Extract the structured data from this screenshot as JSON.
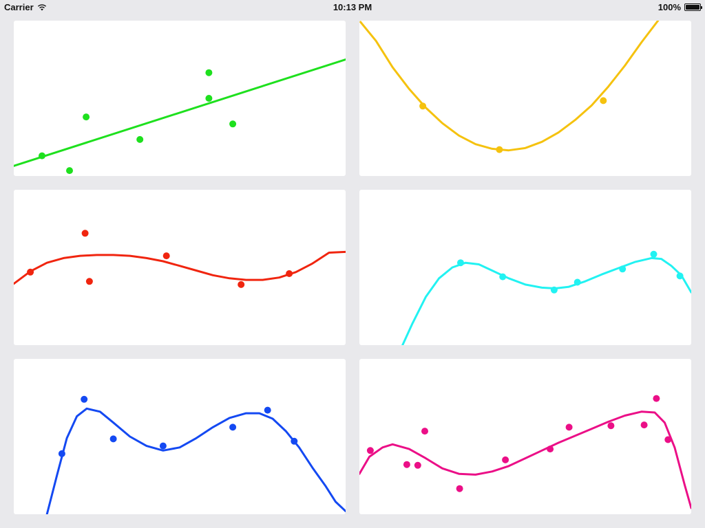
{
  "status_bar": {
    "carrier": "Carrier",
    "time": "10:13 PM",
    "battery": "100%",
    "battery_level": 1.0
  },
  "chart_data": [
    {
      "type": "scatter",
      "color": "#1ee01e",
      "fit": "linear",
      "xlim": [
        0,
        10
      ],
      "ylim": [
        0,
        10
      ],
      "points": [
        [
          0.85,
          1.3
        ],
        [
          1.68,
          0.35
        ],
        [
          2.18,
          3.8
        ],
        [
          3.8,
          2.35
        ],
        [
          5.88,
          5.0
        ],
        [
          5.88,
          6.65
        ],
        [
          6.6,
          3.35
        ]
      ],
      "curve": [
        [
          0,
          0.65
        ],
        [
          10,
          7.5
        ]
      ]
    },
    {
      "type": "scatter",
      "color": "#f5c20f",
      "fit": "quadratic",
      "xlim": [
        0,
        10
      ],
      "ylim": [
        0,
        10
      ],
      "points": [
        [
          1.91,
          4.5
        ],
        [
          4.22,
          1.7
        ],
        [
          7.35,
          4.85
        ]
      ],
      "curve": [
        [
          0,
          10.0
        ],
        [
          0.5,
          8.7
        ],
        [
          1.0,
          7.0
        ],
        [
          1.5,
          5.6
        ],
        [
          2.0,
          4.4
        ],
        [
          2.5,
          3.4
        ],
        [
          3.0,
          2.6
        ],
        [
          3.5,
          2.05
        ],
        [
          4.0,
          1.75
        ],
        [
          4.5,
          1.65
        ],
        [
          5.0,
          1.8
        ],
        [
          5.5,
          2.2
        ],
        [
          6.0,
          2.8
        ],
        [
          6.5,
          3.6
        ],
        [
          7.0,
          4.55
        ],
        [
          7.5,
          5.75
        ],
        [
          8.0,
          7.1
        ],
        [
          8.5,
          8.6
        ],
        [
          9.0,
          10.0
        ]
      ]
    },
    {
      "type": "scatter",
      "color": "#f0250f",
      "fit": "cubic",
      "xlim": [
        0,
        10
      ],
      "ylim": [
        0,
        10
      ],
      "points": [
        [
          0.5,
          4.7
        ],
        [
          2.15,
          7.2
        ],
        [
          2.28,
          4.1
        ],
        [
          4.6,
          5.75
        ],
        [
          6.85,
          3.9
        ],
        [
          8.3,
          4.6
        ]
      ],
      "curve": [
        [
          0,
          3.95
        ],
        [
          0.5,
          4.75
        ],
        [
          1.0,
          5.3
        ],
        [
          1.5,
          5.6
        ],
        [
          2.0,
          5.75
        ],
        [
          2.5,
          5.8
        ],
        [
          3.0,
          5.8
        ],
        [
          3.5,
          5.75
        ],
        [
          4.0,
          5.6
        ],
        [
          4.5,
          5.4
        ],
        [
          5.0,
          5.1
        ],
        [
          5.5,
          4.8
        ],
        [
          6.0,
          4.5
        ],
        [
          6.5,
          4.3
        ],
        [
          7.0,
          4.2
        ],
        [
          7.5,
          4.2
        ],
        [
          8.0,
          4.35
        ],
        [
          8.5,
          4.7
        ],
        [
          9.0,
          5.25
        ],
        [
          9.5,
          5.95
        ],
        [
          10,
          6.0
        ]
      ]
    },
    {
      "type": "scatter",
      "color": "#22f2f2",
      "fit": "polynomial",
      "xlim": [
        0,
        10
      ],
      "ylim": [
        0,
        10
      ],
      "points": [
        [
          3.05,
          5.3
        ],
        [
          4.32,
          4.4
        ],
        [
          5.87,
          3.55
        ],
        [
          6.57,
          4.05
        ],
        [
          7.93,
          4.9
        ],
        [
          8.87,
          5.85
        ],
        [
          9.66,
          4.45
        ]
      ],
      "curve": [
        [
          1.3,
          0.0
        ],
        [
          1.6,
          1.4
        ],
        [
          2.0,
          3.1
        ],
        [
          2.4,
          4.3
        ],
        [
          2.8,
          5.0
        ],
        [
          3.2,
          5.3
        ],
        [
          3.6,
          5.2
        ],
        [
          4.0,
          4.8
        ],
        [
          4.5,
          4.3
        ],
        [
          5.0,
          3.9
        ],
        [
          5.5,
          3.7
        ],
        [
          5.9,
          3.65
        ],
        [
          6.3,
          3.75
        ],
        [
          6.8,
          4.1
        ],
        [
          7.3,
          4.55
        ],
        [
          7.8,
          4.95
        ],
        [
          8.3,
          5.35
        ],
        [
          8.8,
          5.6
        ],
        [
          9.1,
          5.55
        ],
        [
          9.4,
          5.1
        ],
        [
          9.7,
          4.5
        ],
        [
          10,
          3.4
        ]
      ]
    },
    {
      "type": "scatter",
      "color": "#1449f2",
      "fit": "polynomial",
      "xlim": [
        0,
        10
      ],
      "ylim": [
        0,
        10
      ],
      "points": [
        [
          1.45,
          3.9
        ],
        [
          2.12,
          7.4
        ],
        [
          3.0,
          4.85
        ],
        [
          4.5,
          4.4
        ],
        [
          6.6,
          5.6
        ],
        [
          7.65,
          6.7
        ],
        [
          8.45,
          4.7
        ]
      ],
      "curve": [
        [
          1.0,
          0.0
        ],
        [
          1.3,
          2.5
        ],
        [
          1.6,
          4.9
        ],
        [
          1.9,
          6.3
        ],
        [
          2.2,
          6.8
        ],
        [
          2.6,
          6.6
        ],
        [
          3.0,
          5.9
        ],
        [
          3.5,
          5.0
        ],
        [
          4.0,
          4.4
        ],
        [
          4.5,
          4.1
        ],
        [
          5.0,
          4.3
        ],
        [
          5.5,
          4.9
        ],
        [
          6.0,
          5.6
        ],
        [
          6.5,
          6.2
        ],
        [
          7.0,
          6.5
        ],
        [
          7.4,
          6.5
        ],
        [
          7.8,
          6.15
        ],
        [
          8.2,
          5.35
        ],
        [
          8.6,
          4.3
        ],
        [
          9.0,
          3.0
        ],
        [
          9.4,
          1.8
        ],
        [
          9.7,
          0.8
        ],
        [
          10,
          0.2
        ]
      ]
    },
    {
      "type": "scatter",
      "color": "#eb0f87",
      "fit": "polynomial",
      "xlim": [
        0,
        10
      ],
      "ylim": [
        0,
        10
      ],
      "points": [
        [
          0.33,
          4.1
        ],
        [
          1.43,
          3.2
        ],
        [
          1.76,
          3.15
        ],
        [
          1.97,
          5.35
        ],
        [
          3.02,
          1.65
        ],
        [
          4.4,
          3.5
        ],
        [
          5.75,
          4.2
        ],
        [
          6.32,
          5.6
        ],
        [
          7.58,
          5.7
        ],
        [
          8.58,
          5.75
        ],
        [
          8.95,
          7.45
        ],
        [
          9.3,
          4.8
        ]
      ],
      "curve": [
        [
          0,
          2.6
        ],
        [
          0.3,
          3.7
        ],
        [
          0.7,
          4.3
        ],
        [
          1.0,
          4.5
        ],
        [
          1.5,
          4.2
        ],
        [
          2.0,
          3.6
        ],
        [
          2.5,
          2.95
        ],
        [
          3.0,
          2.6
        ],
        [
          3.5,
          2.55
        ],
        [
          4.0,
          2.75
        ],
        [
          4.5,
          3.1
        ],
        [
          5.0,
          3.6
        ],
        [
          5.5,
          4.1
        ],
        [
          6.0,
          4.6
        ],
        [
          6.5,
          5.05
        ],
        [
          7.0,
          5.5
        ],
        [
          7.5,
          5.95
        ],
        [
          8.0,
          6.35
        ],
        [
          8.5,
          6.6
        ],
        [
          8.9,
          6.55
        ],
        [
          9.2,
          5.9
        ],
        [
          9.5,
          4.3
        ],
        [
          9.8,
          1.9
        ],
        [
          10,
          0.4
        ]
      ]
    }
  ]
}
